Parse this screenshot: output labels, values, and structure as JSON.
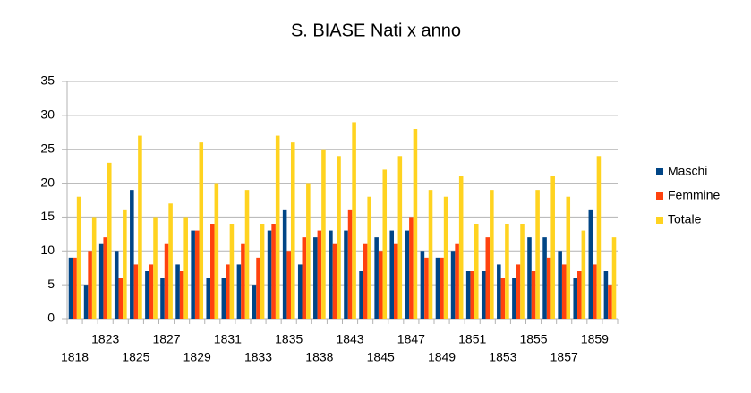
{
  "chart_data": {
    "type": "bar",
    "title": "S. BIASE  Nati x anno",
    "categories": [
      "1818",
      null,
      "1823",
      null,
      "1825",
      null,
      "1827",
      null,
      "1829",
      null,
      "1831",
      null,
      "1833",
      null,
      "1835",
      null,
      "1838",
      null,
      "1843",
      null,
      "1845",
      null,
      "1847",
      null,
      "1849",
      null,
      "1851",
      null,
      "1853",
      null,
      "1855",
      null,
      "1857",
      null,
      "1859",
      null
    ],
    "series": [
      {
        "name": "Maschi",
        "color": "#004586",
        "values": [
          9,
          5,
          11,
          10,
          19,
          7,
          6,
          8,
          13,
          6,
          6,
          8,
          5,
          13,
          16,
          8,
          12,
          13,
          13,
          7,
          12,
          13,
          13,
          10,
          9,
          10,
          7,
          7,
          8,
          6,
          12,
          12,
          10,
          6,
          16,
          7
        ]
      },
      {
        "name": "Femmine",
        "color": "#ff420e",
        "values": [
          9,
          10,
          12,
          6,
          8,
          8,
          11,
          7,
          13,
          14,
          8,
          11,
          9,
          14,
          10,
          12,
          13,
          11,
          16,
          11,
          10,
          11,
          15,
          9,
          9,
          11,
          7,
          12,
          6,
          8,
          7,
          9,
          8,
          7,
          8,
          5
        ]
      },
      {
        "name": "Totale",
        "color": "#ffd320",
        "values": [
          18,
          15,
          23,
          16,
          27,
          15,
          17,
          15,
          26,
          20,
          14,
          19,
          14,
          27,
          26,
          20,
          25,
          24,
          29,
          18,
          22,
          24,
          28,
          19,
          18,
          21,
          14,
          19,
          14,
          14,
          19,
          21,
          18,
          13,
          24,
          12
        ]
      }
    ],
    "ylim": [
      0,
      35
    ],
    "yticks": [
      0,
      5,
      10,
      15,
      20,
      25,
      30,
      35
    ],
    "grid": true,
    "legend": "right"
  }
}
